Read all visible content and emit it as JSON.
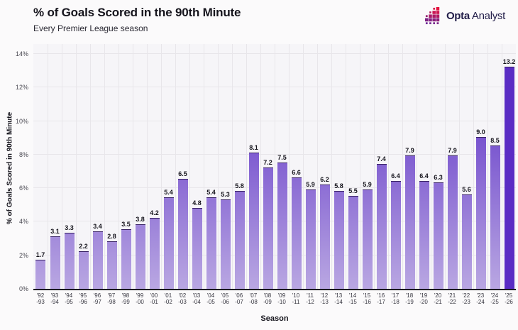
{
  "header": {
    "title": "% of Goals Scored in the 90th Minute",
    "subtitle": "Every Premier League season"
  },
  "logo": {
    "icon": "opta-squares-staircase",
    "name": "Opta",
    "suffix": "Analyst"
  },
  "chart_data": {
    "type": "bar",
    "title": "% of Goals Scored in the 90th Minute",
    "subtitle": "Every Premier League season",
    "xlabel": "Season",
    "ylabel": "% of Goals Scored in 90th Minute",
    "ylim": [
      0,
      14
    ],
    "ytick_labels": [
      "0%",
      "2%",
      "4%",
      "6%",
      "8%",
      "10%",
      "12%",
      "14%"
    ],
    "grid": true,
    "legend": "none",
    "categories": [
      "'92-93",
      "'93-94",
      "'94-95",
      "'95-96",
      "'96-97",
      "'97-98",
      "'98-99",
      "'99-00",
      "'00-01",
      "'01-02",
      "'02-03",
      "'03-04",
      "'04-05",
      "'05-06",
      "'06-07",
      "'07-08",
      "'08-09",
      "'09-10",
      "'10-11",
      "'11-12",
      "'12-13",
      "'13-14",
      "'14-15",
      "'15-16",
      "'16-17",
      "'17-18",
      "'18-19",
      "'19-20",
      "'20-21",
      "'21-22",
      "'22-23",
      "'23-24",
      "'24-25",
      "'25-26"
    ],
    "values": [
      1.7,
      3.1,
      3.3,
      2.2,
      3.4,
      2.8,
      3.5,
      3.8,
      4.2,
      5.4,
      6.5,
      4.8,
      5.4,
      5.3,
      5.8,
      8.1,
      7.2,
      7.5,
      6.6,
      5.9,
      6.2,
      5.8,
      5.5,
      5.9,
      7.4,
      6.4,
      7.9,
      6.4,
      6.3,
      7.9,
      5.6,
      9.0,
      8.5,
      13.2
    ],
    "highlight_index": 33,
    "colors": {
      "bar_low": "#b9a7e2",
      "bar_high": "#5b2ec6",
      "bar_highlight": "#5a2cc4",
      "bar_top_edge": "#362063",
      "plot_bg": "#f6f5f8",
      "grid_line": "#e8e6ea",
      "axis_line": "#1c1b22",
      "logo_red": "#e5133f",
      "logo_purple": "#7c2287"
    }
  }
}
